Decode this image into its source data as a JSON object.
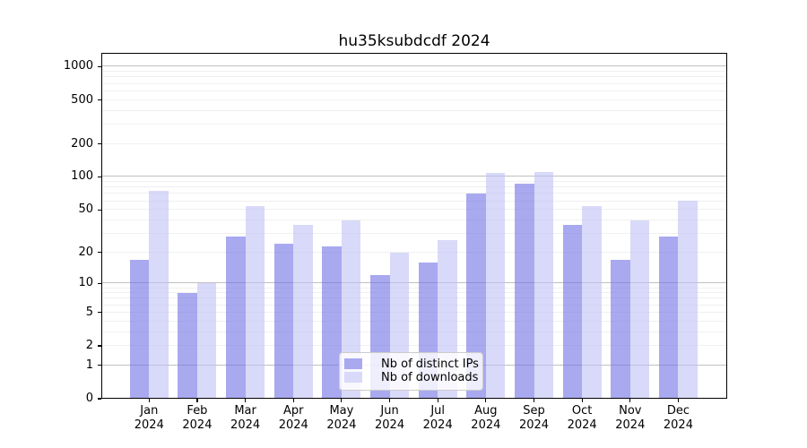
{
  "chart_data": {
    "type": "bar",
    "title": "hu35ksubdcdf 2024",
    "categories": [
      "Jan 2024",
      "Feb 2024",
      "Mar 2024",
      "Apr 2024",
      "May 2024",
      "Jun 2024",
      "Jul 2024",
      "Aug 2024",
      "Sep 2024",
      "Oct 2024",
      "Nov 2024",
      "Dec 2024"
    ],
    "series": [
      {
        "name": "Nb of distinct IPs",
        "color": "#a9a9f0",
        "fill": "rgba(112,112,230,0.6)",
        "values": [
          17,
          8,
          28,
          24,
          23,
          12,
          16,
          71,
          86,
          36,
          17,
          28
        ]
      },
      {
        "name": "Nb of downloads",
        "color": "#d9d9f9",
        "fill": "rgba(192,192,245,0.6)",
        "values": [
          75,
          10,
          54,
          36,
          40,
          20,
          26,
          108,
          111,
          54,
          40,
          61
        ]
      }
    ],
    "xlabel": "",
    "ylabel": "",
    "yscale": "log1p",
    "ylim": [
      0,
      1300
    ],
    "yticks": [
      0,
      1,
      2,
      5,
      10,
      20,
      50,
      100,
      200,
      500,
      1000
    ],
    "grid": "both",
    "legend_position": "lower center"
  },
  "legend": {
    "items": [
      {
        "label": "Nb of distinct IPs"
      },
      {
        "label": "Nb of downloads"
      }
    ]
  },
  "colors": {
    "background": "#ffffff",
    "spine": "#000000",
    "grid_major": "#c0c0c0",
    "grid_minor": "#f0f0f0",
    "legend_border": "#cccccc",
    "text": "#000000"
  }
}
